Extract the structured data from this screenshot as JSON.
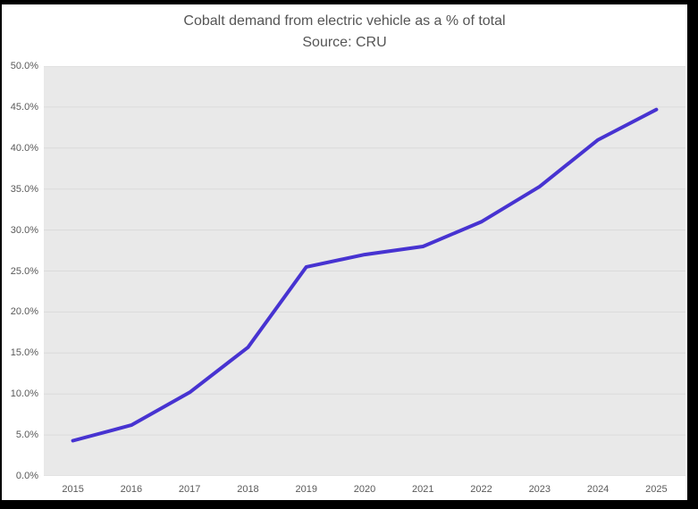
{
  "frame": {
    "border_color": "#000000",
    "background": "#ffffff"
  },
  "chart_data": {
    "type": "line",
    "title": "Cobalt demand from electric vehicle as a % of total",
    "subtitle": "Source: CRU",
    "categories": [
      "2015",
      "2016",
      "2017",
      "2018",
      "2019",
      "2020",
      "2021",
      "2022",
      "2023",
      "2024",
      "2025"
    ],
    "series": [
      {
        "name": "Cobalt demand from electric vehicle as a % of total",
        "values": [
          4.3,
          6.2,
          10.2,
          15.7,
          25.5,
          27.0,
          28.0,
          31.0,
          35.3,
          41.0,
          44.7
        ]
      }
    ],
    "xlabel": "",
    "ylabel": "",
    "ylim": [
      0,
      50
    ],
    "ytick_step": 5,
    "ytick_labels": [
      "0.0%",
      "5.0%",
      "10.0%",
      "15.0%",
      "20.0%",
      "25.0%",
      "30.0%",
      "35.0%",
      "40.0%",
      "45.0%",
      "50.0%"
    ],
    "grid": true,
    "legend_position": "none",
    "line_color": "#4733d1",
    "line_width": 4,
    "plot_bg": "#e9e9e9",
    "grid_color": "#dadada",
    "text_color": "#595959",
    "title_color": "#555555"
  }
}
